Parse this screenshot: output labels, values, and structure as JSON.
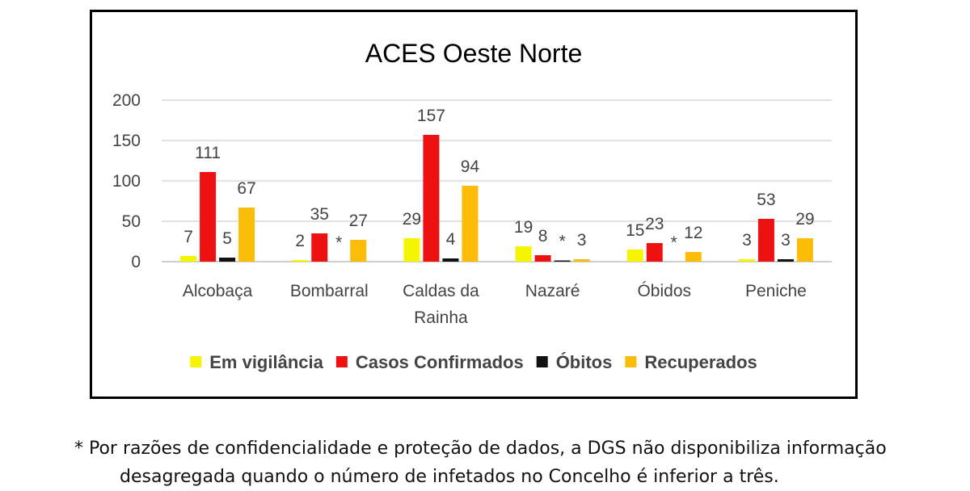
{
  "chart_data": {
    "type": "bar",
    "title": "ACES Oeste Norte",
    "xlabel": "",
    "ylabel": "",
    "ylim": [
      0,
      200
    ],
    "yticks": [
      0,
      50,
      100,
      150,
      200
    ],
    "grid": true,
    "legend_position": "bottom",
    "categories": [
      [
        "Alcobaça"
      ],
      [
        "Bombarral"
      ],
      [
        "Caldas da",
        "Rainha"
      ],
      [
        "Nazaré"
      ],
      [
        "Óbidos"
      ],
      [
        "Peniche"
      ]
    ],
    "series": [
      {
        "name": "Em vigilância",
        "color": "#f5f500",
        "values": [
          7,
          2,
          29,
          19,
          15,
          3
        ],
        "labels": [
          "7",
          "2",
          "29",
          "19",
          "15",
          "3"
        ]
      },
      {
        "name": "Casos Confirmados",
        "color": "#ee1111",
        "values": [
          111,
          35,
          157,
          8,
          23,
          53
        ],
        "labels": [
          "111",
          "35",
          "157",
          "8",
          "23",
          "53"
        ]
      },
      {
        "name": "Óbitos",
        "color": "#111111",
        "values": [
          5,
          0,
          4,
          1,
          0,
          3
        ],
        "labels": [
          "5",
          "*",
          "4",
          "*",
          "*",
          "3"
        ]
      },
      {
        "name": "Recuperados",
        "color": "#fbbd08",
        "values": [
          67,
          27,
          94,
          3,
          12,
          29
        ],
        "labels": [
          "67",
          "27",
          "94",
          "3",
          "12",
          "29"
        ]
      }
    ]
  },
  "footnote": {
    "line1": "* Por razões de confidencialidade e proteção de dados, a DGS não disponibiliza informação",
    "line2": "desagregada quando o número de infetados no Concelho é inferior a três."
  }
}
